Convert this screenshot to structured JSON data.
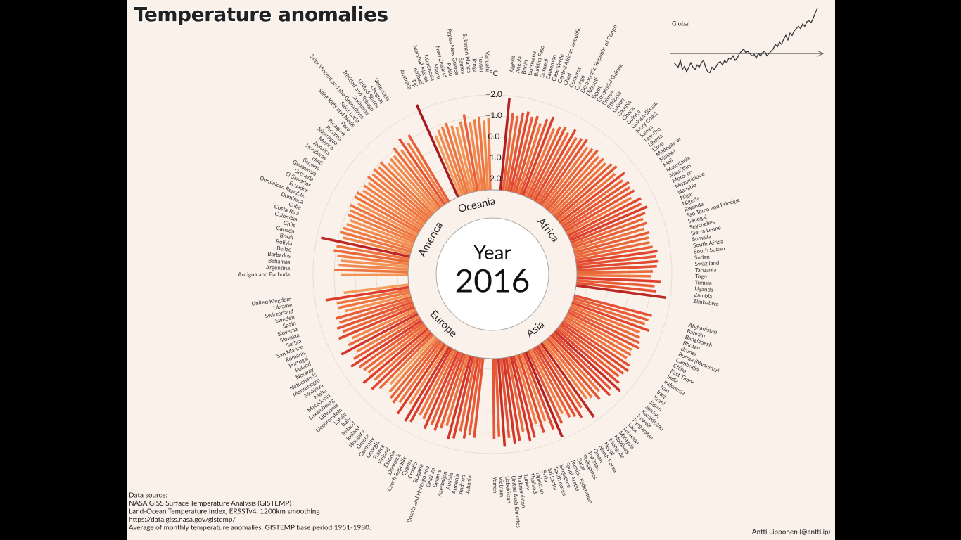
{
  "chart_data": [
    {
      "type": "radial_bar",
      "title": "Temperature anomalies",
      "year_label": "Year",
      "year": 2016,
      "unit_label": "°C",
      "ylim": [
        -2.5,
        2.5
      ],
      "yticks": [
        {
          "value": 2,
          "label": "+2.0"
        },
        {
          "value": 1,
          "label": "+1.0"
        },
        {
          "value": 0,
          "label": "0.0"
        },
        {
          "value": -1,
          "label": "-1.0"
        },
        {
          "value": -2,
          "label": "-2.0"
        }
      ],
      "grid": true,
      "color_stops": [
        "#fbd59a",
        "#f6a865",
        "#ee7440",
        "#dc3d2c",
        "#a81a22"
      ],
      "color_domain": [
        0,
        2
      ],
      "groups": [
        {
          "name": "Africa",
          "categories": [
            "Algeria",
            "Angola",
            "Benin",
            "Botswana",
            "Burkina Faso",
            "Burundi",
            "Cameroon",
            "Cape Verde",
            "Central African Republic",
            "Chad",
            "Comoros",
            "Congo",
            "Democratic Republic of Congo",
            "Djibouti",
            "Egypt",
            "Equatorial Guinea",
            "Eritrea",
            "Ethiopia",
            "Gabon",
            "Gambia",
            "Ghana",
            "Guinea",
            "Guinea-Bissau",
            "Ivory Coast",
            "Kenya",
            "Lesotho",
            "Liberia",
            "Libya",
            "Madagascar",
            "Malawi",
            "Mali",
            "Mauritania",
            "Mauritius",
            "Morocco",
            "Mozambique",
            "Namibia",
            "Niger",
            "Nigeria",
            "Rwanda",
            "Sao Tome and Principe",
            "Senegal",
            "Seychelles",
            "Sierra Leone",
            "Somalia",
            "South Africa",
            "South Sudan",
            "Sudan",
            "Swaziland",
            "Tanzania",
            "Togo",
            "Tunisia",
            "Uganda",
            "Zambia",
            "Zimbabwe"
          ],
          "values": [
            1.9,
            1.2,
            1.1,
            1.3,
            1.4,
            1.2,
            1.3,
            1.0,
            1.3,
            1.5,
            1.0,
            1.2,
            1.3,
            1.1,
            1.4,
            1.1,
            1.2,
            1.3,
            1.0,
            1.1,
            1.2,
            1.0,
            1.1,
            1.0,
            1.2,
            1.3,
            1.0,
            1.4,
            1.1,
            1.3,
            1.2,
            1.3,
            1.0,
            1.4,
            1.3,
            1.5,
            1.3,
            1.1,
            1.2,
            1.0,
            1.2,
            1.1,
            1.1,
            1.2,
            1.4,
            1.3,
            1.4,
            1.3,
            1.1,
            1.0,
            1.5,
            1.2,
            1.3,
            1.8
          ]
        },
        {
          "name": "Asia",
          "categories": [
            "Afghanistan",
            "Bahrain",
            "Bangladesh",
            "Bhutan",
            "Brunei",
            "Burma (Myanmar)",
            "Cambodia",
            "China",
            "East Timor",
            "India",
            "Indonesia",
            "Iran",
            "Iraq",
            "Israel",
            "Japan",
            "Jordan",
            "Kazakhstan",
            "Kuwait",
            "Kyrgyzstan",
            "Laos",
            "Lebanon",
            "Malaysia",
            "Maldives",
            "Mongolia",
            "Nepal",
            "North Korea",
            "Oman",
            "Pakistan",
            "Philippines",
            "Qatar",
            "Russian Federation",
            "Saudi Arabia",
            "Singapore",
            "South Korea",
            "Sri Lanka",
            "Syria",
            "Tajikistan",
            "Thailand",
            "Turkey",
            "Turkmenistan",
            "United Arab Emirates",
            "Uzbekistan",
            "Vietnam",
            "Yemen"
          ],
          "values": [
            1.3,
            1.2,
            1.1,
            1.4,
            1.0,
            1.1,
            1.2,
            1.3,
            1.0,
            1.1,
            1.0,
            1.3,
            1.4,
            1.3,
            1.2,
            1.4,
            1.7,
            1.3,
            1.5,
            1.0,
            1.3,
            1.0,
            0.9,
            1.8,
            1.1,
            1.5,
            1.3,
            1.2,
            0.9,
            1.3,
            1.9,
            1.4,
            0.9,
            1.4,
            0.9,
            1.5,
            1.6,
            1.1,
            1.5,
            1.6,
            1.3,
            1.7,
            1.2,
            1.3
          ]
        },
        {
          "name": "Europe",
          "categories": [
            "Albania",
            "Andorra",
            "Armenia",
            "Austria",
            "Azerbaijan",
            "Belarus",
            "Belgium",
            "Bosnia and Herzegovina",
            "Bulgaria",
            "Croatia",
            "Cyprus",
            "Czech Republic",
            "Denmark",
            "Estonia",
            "Finland",
            "France",
            "Georgia",
            "Germany",
            "Greece",
            "Hungary",
            "Iceland",
            "Ireland",
            "Italy",
            "Latvia",
            "Liechtenstein",
            "Lithuania",
            "Luxembourg",
            "Macedonia",
            "Malta",
            "Moldova",
            "Montenegro",
            "Netherlands",
            "Norway",
            "Poland",
            "Portugal",
            "Romania",
            "San Marino",
            "Serbia",
            "Slovakia",
            "Slovenia",
            "Spain",
            "Sweden",
            "Switzerland",
            "Ukraine",
            "United Kingdom"
          ],
          "values": [
            1.3,
            1.2,
            1.4,
            1.1,
            1.5,
            1.6,
            1.0,
            1.2,
            1.4,
            1.2,
            1.5,
            1.1,
            1.0,
            1.5,
            1.6,
            0.8,
            1.5,
            1.0,
            1.2,
            1.1,
            0.9,
            0.6,
            1.1,
            1.4,
            1.0,
            1.5,
            1.0,
            1.1,
            1.2,
            1.5,
            1.2,
            0.9,
            1.6,
            1.1,
            0.8,
            1.4,
            1.1,
            1.3,
            1.1,
            1.2,
            0.7,
            1.0,
            1.0,
            1.5,
            0.6
          ]
        },
        {
          "name": "America",
          "categories": [
            "Antigua and Barbuda",
            "Argentina",
            "Bahamas",
            "Barbados",
            "Belize",
            "Bolivia",
            "Brazil",
            "Canada",
            "Chile",
            "Colombia",
            "Costa Rica",
            "Cuba",
            "Dominica",
            "Dominican Republic",
            "Ecuador",
            "El Salvador",
            "Grenada",
            "Guatemala",
            "Guyana",
            "Haiti",
            "Honduras",
            "Jamaica",
            "Mexico",
            "Nicaragua",
            "Panama",
            "Paraguay",
            "Peru",
            "Saint Kitts and Nevis",
            "Saint Lucia",
            "Saint Vincent and the Grenadines",
            "Suriname",
            "Trinidad and Tobago",
            "United States",
            "Uruguay",
            "Venezuela"
          ],
          "values": [
            0.7,
            1.0,
            0.8,
            0.7,
            0.9,
            1.1,
            1.0,
            1.8,
            0.8,
            1.0,
            0.9,
            0.8,
            0.7,
            0.9,
            0.9,
            1.0,
            0.7,
            1.0,
            1.0,
            0.8,
            0.9,
            0.8,
            1.0,
            0.9,
            1.0,
            0.9,
            1.0,
            0.7,
            0.8,
            0.8,
            1.1,
            0.8,
            1.3,
            0.9,
            1.2
          ]
        },
        {
          "name": "Oceania",
          "categories": [
            "Australia",
            "Fiji",
            "Kiribati",
            "Marshall Islands",
            "Micronesia",
            "Nauru",
            "New Zealand",
            "Palau",
            "Papua New Guinea",
            "Samoa",
            "Solomon Islands",
            "Tonga",
            "Tuvalu",
            "Vanuatu"
          ],
          "values": [
            2.3,
            0.6,
            0.8,
            0.9,
            1.0,
            0.8,
            0.7,
            0.9,
            1.2,
            0.8,
            0.9,
            1.0,
            0.8,
            0.9
          ]
        }
      ]
    },
    {
      "type": "line",
      "ylim": [
        -0.6,
        1.1
      ],
      "series": [
        {
          "name": "Global",
          "color": "#333333",
          "values": [
            -0.2,
            -0.25,
            -0.3,
            -0.15,
            -0.35,
            -0.28,
            -0.4,
            -0.3,
            -0.2,
            -0.3,
            -0.35,
            -0.25,
            -0.3,
            -0.2,
            -0.15,
            -0.3,
            -0.4,
            -0.42,
            -0.3,
            -0.35,
            -0.28,
            -0.2,
            -0.18,
            -0.25,
            -0.15,
            -0.2,
            -0.1,
            -0.12,
            -0.05,
            -0.15,
            -0.1,
            0.0,
            0.05,
            0.1,
            0.02,
            0.05,
            0.0,
            -0.05,
            -0.02,
            -0.1,
            0.0,
            -0.05,
            0.02,
            0.05,
            -0.05,
            0.0,
            0.05,
            0.1,
            0.2,
            0.15,
            0.25,
            0.2,
            0.32,
            0.4,
            0.3,
            0.45,
            0.4,
            0.5,
            0.55,
            0.6,
            0.55,
            0.65,
            0.6,
            0.7,
            0.72,
            0.68,
            0.78,
            0.9,
            1.0
          ]
        }
      ]
    }
  ],
  "footer": {
    "source_lines": [
      "Data source:",
      "NASA GISS Surface Temperature Analysis (GISTEMP)",
      "Land-Ocean Temperature Index, ERSSTv4, 1200km smoothing",
      "https://data.giss.nasa.gov/gistemp/",
      "Average of monthly temperature anomalies. GISTEMP base period 1951-1980."
    ],
    "credit": "Antti Lipponen (@anttilip)"
  }
}
